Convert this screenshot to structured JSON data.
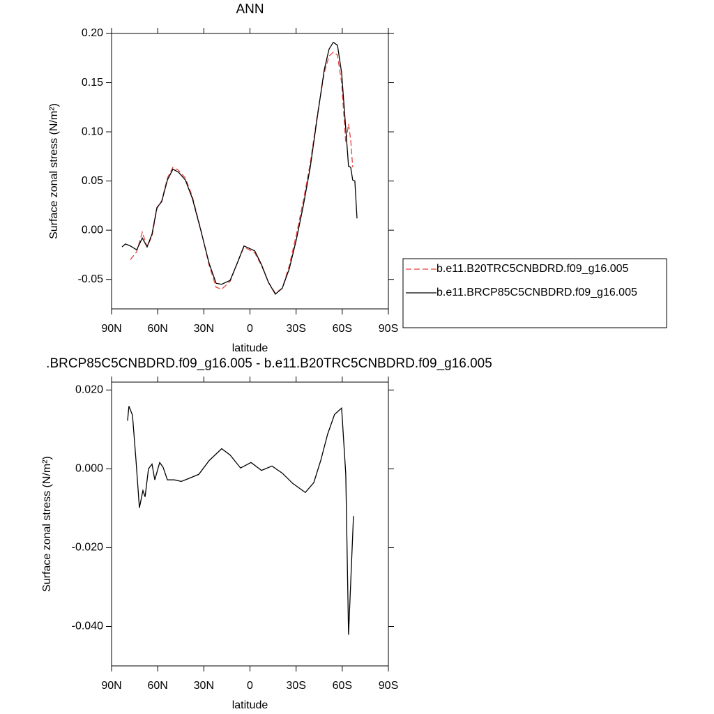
{
  "chart_data": [
    {
      "type": "line",
      "title": "ANN",
      "xlabel": "latitude",
      "ylabel": "Surface zonal stress (N/m²)",
      "xlim": [
        90,
        -90
      ],
      "xticks": [
        {
          "value": 90,
          "label": "90N"
        },
        {
          "value": 60,
          "label": "60N"
        },
        {
          "value": 30,
          "label": "30N"
        },
        0,
        {
          "value": -30,
          "label": "30S"
        },
        {
          "value": -60,
          "label": "60S"
        },
        {
          "value": -90,
          "label": "90S"
        }
      ],
      "ylim": [
        -0.08,
        0.2
      ],
      "yticks": [
        {
          "value": -0.05,
          "label": "-0.05"
        },
        {
          "value": 0,
          "label": "0.00"
        },
        {
          "value": 0.05,
          "label": "0.05"
        },
        {
          "value": 0.1,
          "label": "0.10"
        },
        {
          "value": 0.15,
          "label": "0.15"
        },
        {
          "value": 0.2,
          "label": "0.20"
        }
      ],
      "legend": "right",
      "x": [
        83.2,
        81,
        77.8,
        73.7,
        70,
        66.9,
        63.7,
        60.5,
        57.4,
        53.7,
        50.1,
        46.5,
        42,
        37.4,
        32,
        26.5,
        22,
        18.4,
        12.9,
        8.4,
        3.9,
        -3.1,
        -7.5,
        -12,
        -16.5,
        -21,
        -25.6,
        -30.1,
        -34.7,
        -39.2,
        -43.7,
        -48.3,
        -51.4,
        -54.2,
        -56.9,
        -59.6,
        -62.3,
        -64.1,
        -65.5,
        -66.8,
        -68.2,
        -69.6
      ],
      "series": [
        {
          "name": "b.e11.B20TRC5CNBDRD.f09_g16.005",
          "color": "#e8413c",
          "linestyle": "dashed",
          "values": [
            null,
            null,
            -0.03,
            -0.022,
            -0.002,
            -0.017,
            -0.006,
            0.022,
            0.03,
            0.053,
            0.064,
            0.061,
            0.053,
            0.034,
            0.001,
            -0.036,
            -0.058,
            -0.06,
            -0.052,
            -0.034,
            -0.017,
            -0.023,
            -0.036,
            -0.053,
            -0.064,
            -0.059,
            -0.036,
            -0.005,
            0.03,
            0.068,
            0.116,
            0.16,
            0.177,
            0.181,
            0.178,
            0.15,
            0.089,
            0.108,
            0.092,
            0.064,
            null,
            null
          ]
        },
        {
          "name": "b.e11.BRCP85C5CNBDRD.f09_g16.005",
          "color": "#000000",
          "linestyle": "solid",
          "values": [
            -0.017,
            -0.014,
            -0.016,
            -0.02,
            -0.008,
            -0.017,
            -0.004,
            0.023,
            0.029,
            0.051,
            0.062,
            0.059,
            0.051,
            0.032,
            0.0,
            -0.034,
            -0.054,
            -0.055,
            -0.051,
            -0.034,
            -0.016,
            -0.021,
            -0.035,
            -0.053,
            -0.065,
            -0.059,
            -0.039,
            -0.01,
            0.025,
            0.064,
            0.114,
            0.163,
            0.184,
            0.191,
            0.188,
            0.16,
            0.103,
            0.065,
            0.064,
            0.051,
            0.05,
            0.012
          ]
        }
      ]
    },
    {
      "type": "line",
      "title": ".BRCP85C5CNBDRD.f09_g16.005 - b.e11.B20TRC5CNBDRD.f09_g16.005",
      "xlabel": "latitude",
      "ylabel": "Surface zonal stress (N/m²)",
      "xlim": [
        90,
        -90
      ],
      "xticks": [
        {
          "value": 90,
          "label": "90N"
        },
        {
          "value": 60,
          "label": "60N"
        },
        {
          "value": 30,
          "label": "30N"
        },
        0,
        {
          "value": -30,
          "label": "30S"
        },
        {
          "value": -60,
          "label": "60S"
        },
        {
          "value": -90,
          "label": "90S"
        }
      ],
      "ylim": [
        -0.05,
        0.022
      ],
      "yticks": [
        {
          "value": -0.04,
          "label": "-0.040"
        },
        {
          "value": -0.02,
          "label": "-0.020"
        },
        {
          "value": 0,
          "label": "0.000"
        },
        {
          "value": 0.02,
          "label": "0.020"
        }
      ],
      "x": [
        79.6,
        78.7,
        76.4,
        74.1,
        71.9,
        69.6,
        68.2,
        66,
        63.7,
        61.9,
        58.7,
        56.5,
        53.7,
        49.2,
        44.7,
        40.1,
        33.3,
        26.5,
        18.4,
        12.9,
        6.1,
        -0.7,
        -7.5,
        -14.3,
        -21,
        -27.8,
        -36,
        -41.5,
        -46,
        -50.5,
        -55,
        -59.6,
        -62.3,
        -64.1,
        -67.3
      ],
      "series": [
        {
          "color": "#000000",
          "linestyle": "solid",
          "values": [
            0.0122,
            0.0159,
            0.0136,
            0.0021,
            -0.0099,
            -0.0055,
            -0.0071,
            0,
            0.0012,
            -0.0028,
            0.0016,
            0.0004,
            -0.0028,
            -0.0028,
            -0.0032,
            -0.0025,
            -0.0014,
            0.0021,
            0.0051,
            0.0035,
            0.0002,
            0.0016,
            -0.0004,
            0.0007,
            -0.0011,
            -0.0037,
            -0.006,
            -0.0035,
            0.0021,
            0.0088,
            0.0138,
            0.0154,
            -0.0014,
            -0.0421,
            -0.012
          ]
        }
      ]
    }
  ]
}
